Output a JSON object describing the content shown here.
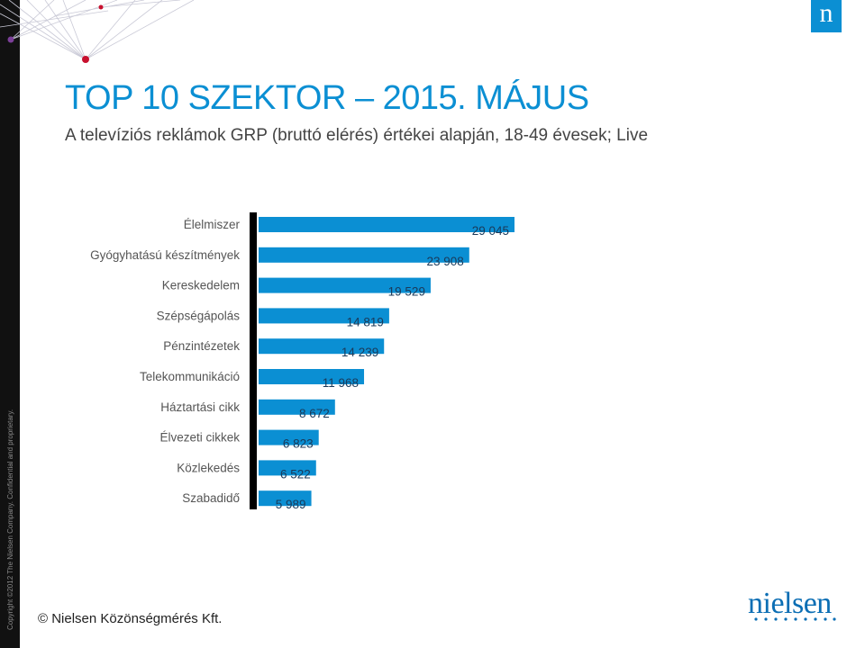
{
  "header": {
    "title": "TOP 10 SZEKTOR – 2015. MÁJUS",
    "subtitle": "A televíziós reklámok GRP (bruttó elérés) értékei alapján, 18-49 évesek; Live",
    "brand_mark": "n"
  },
  "side": {
    "copyright": "Copyright ©2012 The Nielsen Company. Confidential and proprietary."
  },
  "footer": {
    "text": "© Nielsen Közönségmérés Kft.",
    "logo": "nielsen"
  },
  "colors": {
    "accent": "#0b8fd3",
    "axis": "#000000",
    "dot_red": "#c8102e",
    "dot_purple": "#7b3f98"
  },
  "chart_data": {
    "type": "bar",
    "orientation": "horizontal",
    "categories": [
      "Élelmiszer",
      "Gyógyhatású készítmények",
      "Kereskedelem",
      "Szépségápolás",
      "Pénzintézetek",
      "Telekommunikáció",
      "Háztartási cikk",
      "Élvezeti cikkek",
      "Közlekedés",
      "Szabadidő"
    ],
    "values": [
      29045,
      23908,
      19529,
      14819,
      14239,
      11968,
      8672,
      6823,
      6522,
      5989
    ],
    "value_labels": [
      "29 045",
      "23 908",
      "19 529",
      "14 819",
      "14 239",
      "11 968",
      "8 672",
      "6 823",
      "6 522",
      "5 989"
    ],
    "xlim": [
      0,
      29045
    ],
    "grid": false,
    "legend": "none"
  }
}
